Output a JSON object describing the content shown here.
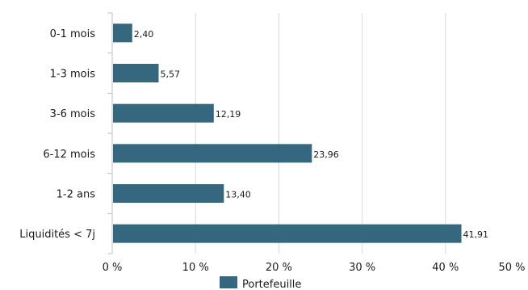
{
  "chart_data": {
    "type": "bar",
    "orientation": "horizontal",
    "categories": [
      "0-1 mois",
      "1-3 mois",
      "3-6 mois",
      "6-12 mois",
      "1-2 ans",
      "Liquidités < 7j"
    ],
    "series": [
      {
        "name": "Portefeuille",
        "values": [
          2.4,
          5.57,
          12.19,
          23.96,
          13.4,
          41.91
        ],
        "value_labels": [
          "2,40",
          "5,57",
          "12,19",
          "23,96",
          "13,40",
          "41,91"
        ],
        "color": "#35677e"
      }
    ],
    "x_ticks": [
      "0 %",
      "10 %",
      "20 %",
      "30 %",
      "40 %",
      "50 %"
    ],
    "xlim": [
      0,
      50
    ],
    "grid": "vertical",
    "legend": "bottom",
    "title": "",
    "xlabel": "",
    "ylabel": ""
  }
}
